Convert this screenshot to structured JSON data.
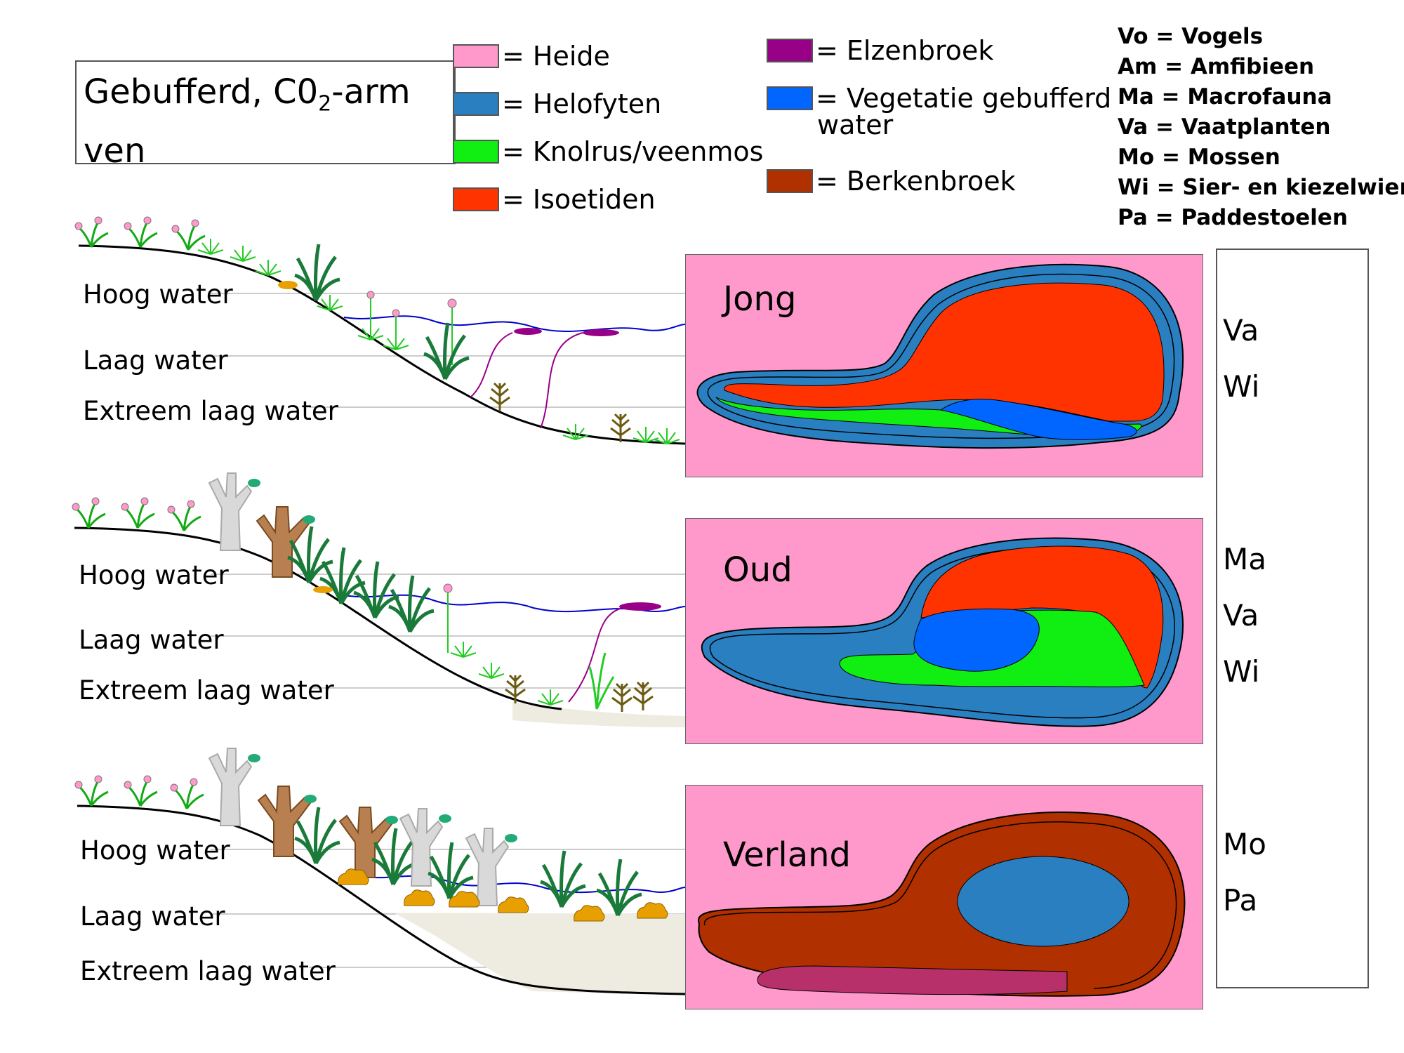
{
  "title": {
    "line1": "Gebufferd, C0",
    "sub": "2",
    "line1_end": "-arm",
    "line2": "ven"
  },
  "legend_left": [
    {
      "label": "= Heide",
      "color": "#ff99cc"
    },
    {
      "label": "= Helofyten",
      "color": "#2a7fc0"
    },
    {
      "label": "= Knolrus/veenmos",
      "color": "#11ee11"
    },
    {
      "label": "= Isoetiden",
      "color": "#ff3300"
    }
  ],
  "legend_right": [
    {
      "label": "= Elzenbroek",
      "color": "#990088"
    },
    {
      "label": "= Vegetatie gebufferd",
      "label2": "water",
      "color": "#0066ff"
    },
    {
      "label": "= Berkenbroek",
      "color": "#b03000"
    }
  ],
  "abbreviations": [
    "Vo  = Vogels",
    "Am = Amfibieen",
    "Ma = Macrofauna",
    "Va  = Vaatplanten",
    "Mo = Mossen",
    "Wi  = Sier- en kiezelwier",
    "Pa  = Paddestoelen"
  ],
  "levels": {
    "high": "Hoog water",
    "low": "Laag water",
    "extreme": "Extreem laag water"
  },
  "panels": [
    {
      "label": "Jong",
      "groups": [
        "Va",
        "Wi"
      ]
    },
    {
      "label": "Oud",
      "groups": [
        "Ma",
        "Va",
        "Wi"
      ]
    },
    {
      "label": "Verland",
      "groups": [
        "Mo",
        "Pa"
      ]
    }
  ],
  "colors": {
    "heide": "#ff99cc",
    "helofyten": "#2a7fc0",
    "knolrus": "#11ee11",
    "isoetiden": "#ff3300",
    "elzenbroek": "#990088",
    "vegetatie": "#0066ff",
    "berkenbroek": "#b03000",
    "water": "#0000cc",
    "sediment": "#eeebe0"
  }
}
